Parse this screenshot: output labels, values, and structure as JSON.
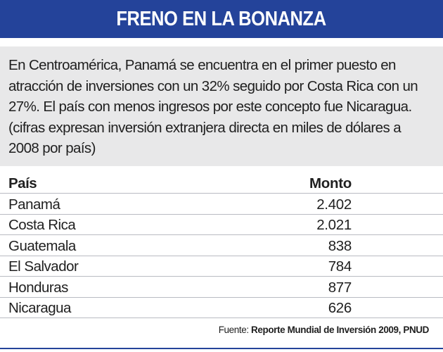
{
  "header": {
    "title": "FRENO EN LA BONANZA"
  },
  "intro": {
    "text": "En Centroamérica, Panamá se encuentra en el primer puesto en atracción de inversiones con un 32% seguido por Costa Rica con un 27%. El país con menos ingresos por este concepto fue Nicaragua. (cifras expresan inversión extranjera directa en miles de dólares a 2008 por país)"
  },
  "table": {
    "headers": {
      "country": "País",
      "amount": "Monto"
    },
    "rows": [
      {
        "country": "Panamá",
        "amount": "2.402"
      },
      {
        "country": "Costa Rica",
        "amount": "2.021"
      },
      {
        "country": "Guatemala",
        "amount": "838"
      },
      {
        "country": "El Salvador",
        "amount": "784"
      },
      {
        "country": "Honduras",
        "amount": "877"
      },
      {
        "country": "Nicaragua",
        "amount": "626"
      }
    ]
  },
  "source": {
    "label": "Fuente:",
    "name": "Reporte Mundial de Inversión 2009, PNUD"
  },
  "colors": {
    "header_bg": "#24439a",
    "intro_bg": "#e8e8e9",
    "rule": "#b9bbc2"
  }
}
